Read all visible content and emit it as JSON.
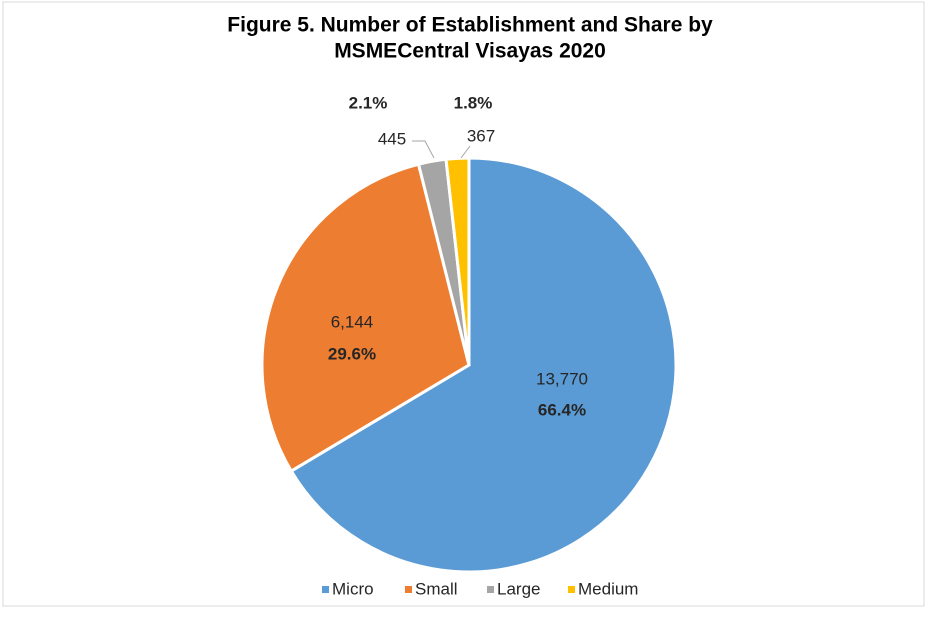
{
  "chart_data": {
    "type": "pie",
    "title": [
      "Figure 5. Number of Establishment and Share by",
      "MSMECentral Visayas 2020"
    ],
    "categories": [
      "Micro",
      "Small",
      "Large",
      "Medium"
    ],
    "values": [
      13770,
      6144,
      445,
      367
    ],
    "value_labels": [
      "13,770",
      "6,144",
      "445",
      "367"
    ],
    "shares": [
      66.4,
      29.6,
      2.1,
      1.8
    ],
    "share_labels": [
      "66.4%",
      "29.6%",
      "2.1%",
      "1.8%"
    ],
    "colors": [
      "#5b9bd5",
      "#ed7d31",
      "#a5a5a5",
      "#ffc000"
    ],
    "legend": "bottom"
  }
}
